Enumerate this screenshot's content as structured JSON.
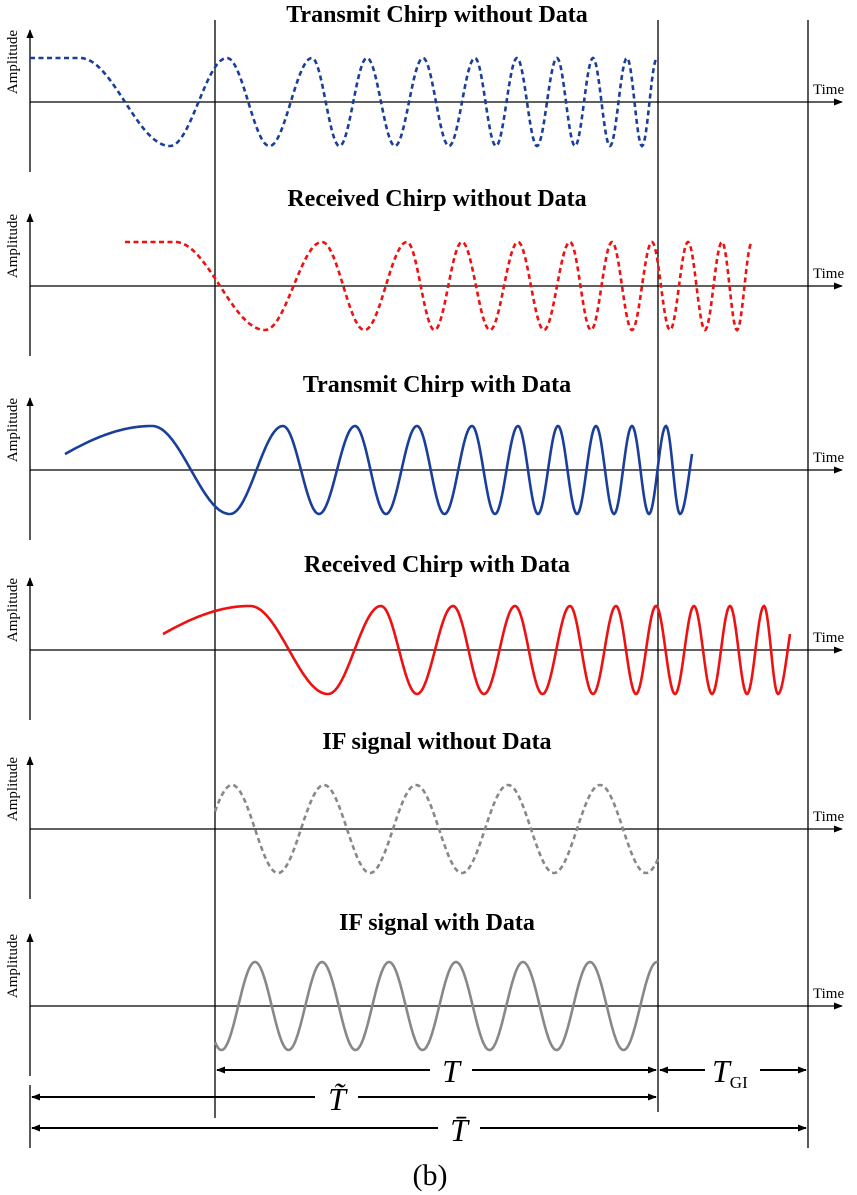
{
  "panels": [
    {
      "title": "Transmit Chirp without Data",
      "y_label": "Amplitude",
      "x_label": "Time"
    },
    {
      "title": "Received Chirp without Data",
      "y_label": "Amplitude",
      "x_label": "Time"
    },
    {
      "title": "Transmit Chirp with Data",
      "y_label": "Amplitude",
      "x_label": "Time"
    },
    {
      "title": "Received Chirp with Data",
      "y_label": "Amplitude",
      "x_label": "Time"
    },
    {
      "title": "IF signal without Data",
      "y_label": "Amplitude",
      "x_label": "Time"
    },
    {
      "title": "IF signal with Data",
      "y_label": "Amplitude",
      "x_label": "Time"
    }
  ],
  "intervals": {
    "T": "T",
    "T_tilde": "T̃",
    "T_bar": "T̄",
    "T_GI": {
      "main": "T",
      "sub": "GI"
    }
  },
  "caption": "(b)"
}
